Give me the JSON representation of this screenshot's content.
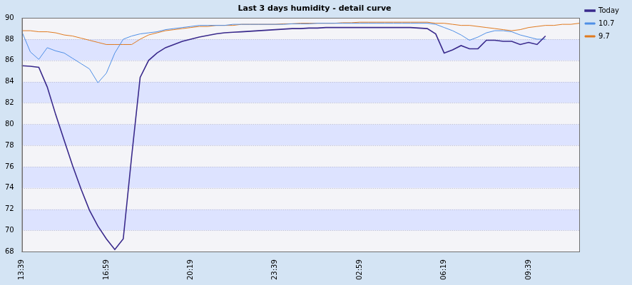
{
  "chart_data": {
    "type": "line",
    "title": "Last 3 days humidity - detail curve",
    "categories": [
      "13:39",
      null,
      null,
      null,
      null,
      null,
      null,
      null,
      null,
      null,
      "16:59",
      null,
      null,
      null,
      null,
      null,
      null,
      null,
      null,
      null,
      "20:19",
      null,
      null,
      null,
      null,
      null,
      null,
      null,
      null,
      null,
      "23:39",
      null,
      null,
      null,
      null,
      null,
      null,
      null,
      null,
      null,
      "02:59",
      null,
      null,
      null,
      null,
      null,
      null,
      null,
      null,
      null,
      "06:19",
      null,
      null,
      null,
      null,
      null,
      null,
      null,
      null,
      null,
      "09:39",
      null,
      null,
      null,
      null,
      null,
      null
    ],
    "series": [
      {
        "name": "Today",
        "color": "#3a2a8c",
        "values": [
          85.5,
          85.45,
          85.35,
          83.5,
          80.9,
          78.5,
          76.1,
          73.9,
          71.9,
          70.4,
          69.2,
          68.2,
          69.2,
          77,
          84.4,
          86,
          86.7,
          87.2,
          87.5,
          87.8,
          88,
          88.2,
          88.35,
          88.5,
          88.6,
          88.65,
          88.7,
          88.75,
          88.8,
          88.85,
          88.9,
          88.95,
          89,
          89,
          89.05,
          89.05,
          89.1,
          89.1,
          89.1,
          89.1,
          89.1,
          89.1,
          89.1,
          89.1,
          89.1,
          89.1,
          89.1,
          89.05,
          89,
          88.5,
          86.7,
          87,
          87.4,
          87.1,
          87.1,
          87.9,
          87.9,
          87.8,
          87.8,
          87.5,
          87.7,
          87.5,
          88.3,
          null,
          null,
          null,
          null
        ]
      },
      {
        "name": "10.7",
        "color": "#4f8fe6",
        "values": [
          88.7,
          86.8,
          86.1,
          87.2,
          86.9,
          86.7,
          86.2,
          85.7,
          85.2,
          83.9,
          84.8,
          86.7,
          88,
          88.3,
          88.5,
          88.6,
          88.7,
          88.9,
          89,
          89.1,
          89.2,
          89.3,
          89.3,
          89.3,
          89.3,
          89.4,
          89.4,
          89.4,
          89.4,
          89.4,
          89.4,
          89.4,
          89.45,
          89.45,
          89.45,
          89.5,
          89.5,
          89.5,
          89.5,
          89.5,
          89.5,
          89.5,
          89.5,
          89.5,
          89.5,
          89.5,
          89.5,
          89.5,
          89.5,
          89.4,
          89.1,
          88.8,
          88.4,
          87.9,
          88.2,
          88.6,
          88.8,
          88.8,
          88.7,
          88.4,
          88.2,
          88,
          88,
          null,
          null,
          null,
          null
        ]
      },
      {
        "name": "9.7",
        "color": "#e07a1f",
        "values": [
          88.8,
          88.8,
          88.7,
          88.7,
          88.6,
          88.4,
          88.3,
          88.1,
          87.9,
          87.7,
          87.5,
          87.5,
          87.5,
          87.5,
          88,
          88.4,
          88.6,
          88.8,
          88.9,
          89,
          89.1,
          89.2,
          89.2,
          89.3,
          89.3,
          89.3,
          89.4,
          89.4,
          89.4,
          89.4,
          89.4,
          89.45,
          89.45,
          89.5,
          89.5,
          89.5,
          89.5,
          89.5,
          89.55,
          89.55,
          89.6,
          89.6,
          89.6,
          89.6,
          89.6,
          89.6,
          89.6,
          89.6,
          89.6,
          89.5,
          89.5,
          89.4,
          89.3,
          89.3,
          89.2,
          89.1,
          89,
          88.9,
          88.8,
          88.9,
          89.1,
          89.2,
          89.3,
          89.3,
          89.4,
          89.4,
          89.5
        ]
      }
    ],
    "ylim": [
      68,
      90
    ],
    "yticks": [
      68,
      70,
      72,
      74,
      76,
      78,
      80,
      82,
      84,
      86,
      88,
      90
    ],
    "grid": true,
    "legend": "right"
  }
}
